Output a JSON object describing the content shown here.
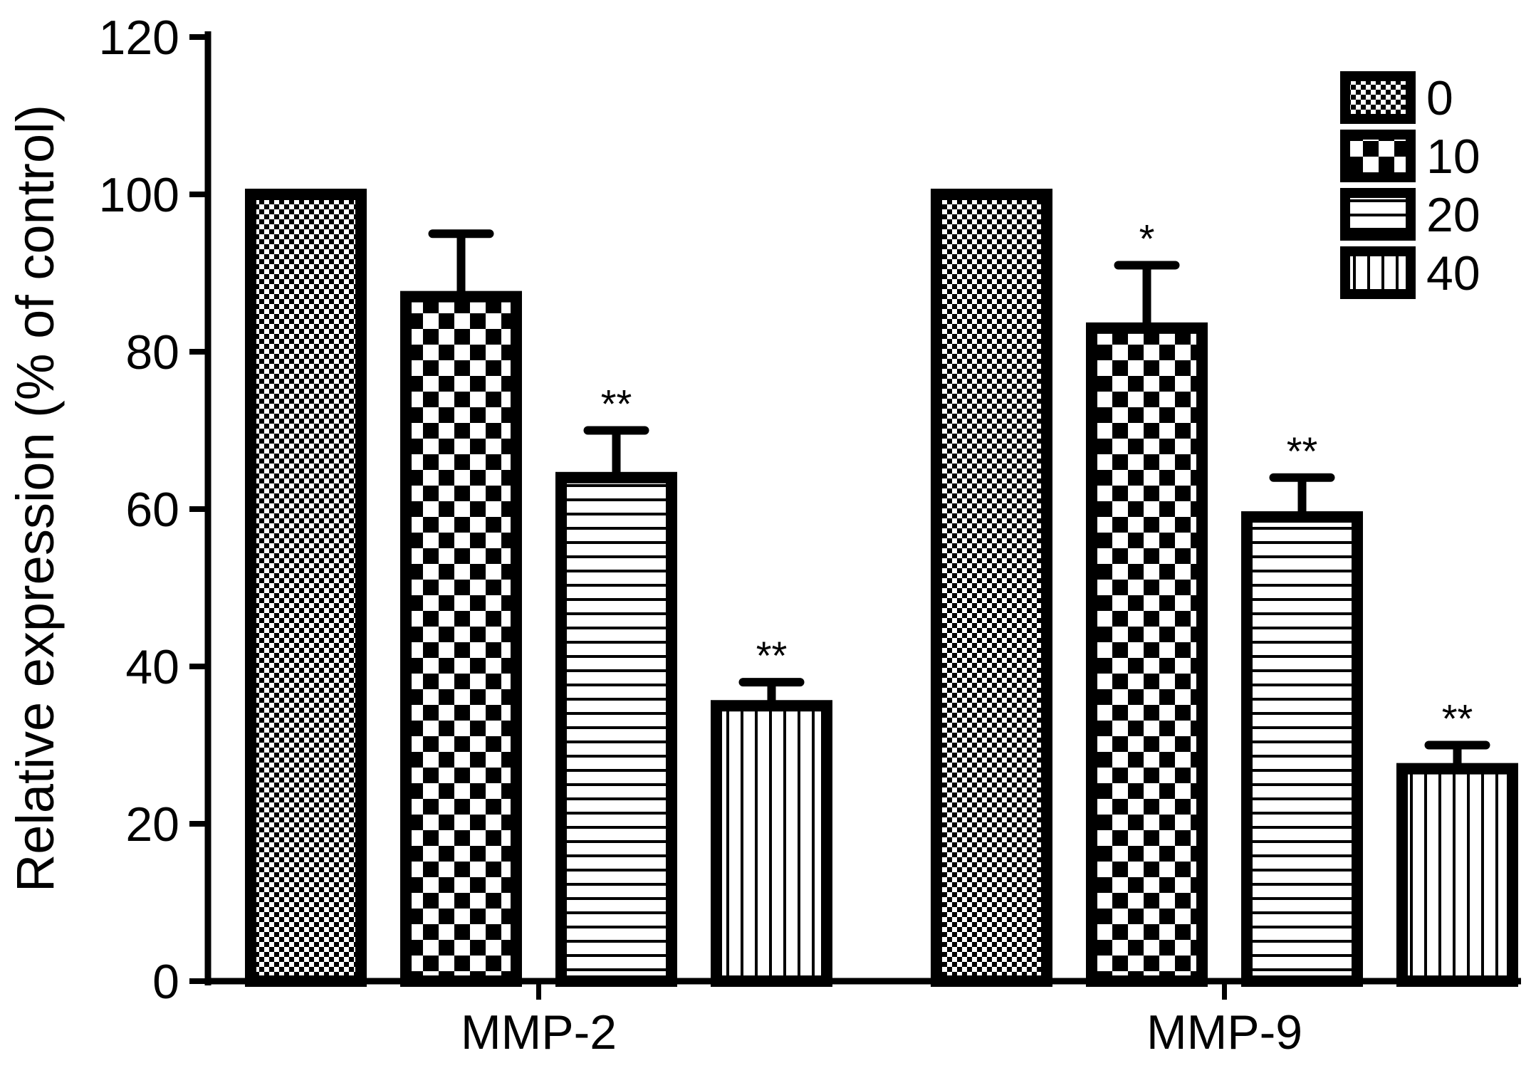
{
  "chart_data": {
    "type": "bar",
    "title": "",
    "xlabel": "",
    "ylabel": "Relative expression (% of control)",
    "ylim": [
      0,
      120
    ],
    "yticks": [
      0,
      20,
      40,
      60,
      80,
      100,
      120
    ],
    "categories": [
      "MMP-2",
      "MMP-9"
    ],
    "grid": false,
    "legend_position": "top-right",
    "series": [
      {
        "name": "0",
        "pattern": "fine-checker",
        "values": [
          100,
          100
        ],
        "errors": [
          0,
          0
        ]
      },
      {
        "name": "10",
        "pattern": "large-checker",
        "values": [
          87,
          83
        ],
        "errors": [
          8,
          8
        ]
      },
      {
        "name": "20",
        "pattern": "horizontal-lines",
        "values": [
          64,
          59
        ],
        "errors": [
          6,
          5
        ]
      },
      {
        "name": "40",
        "pattern": "vertical-lines",
        "values": [
          35,
          27
        ],
        "errors": [
          3,
          3
        ]
      }
    ],
    "annotations": [
      [
        "",
        "",
        "**",
        "**"
      ],
      [
        "",
        "*",
        "**",
        "**"
      ]
    ],
    "colors": {
      "stroke": "#000000",
      "background": "#ffffff"
    }
  }
}
